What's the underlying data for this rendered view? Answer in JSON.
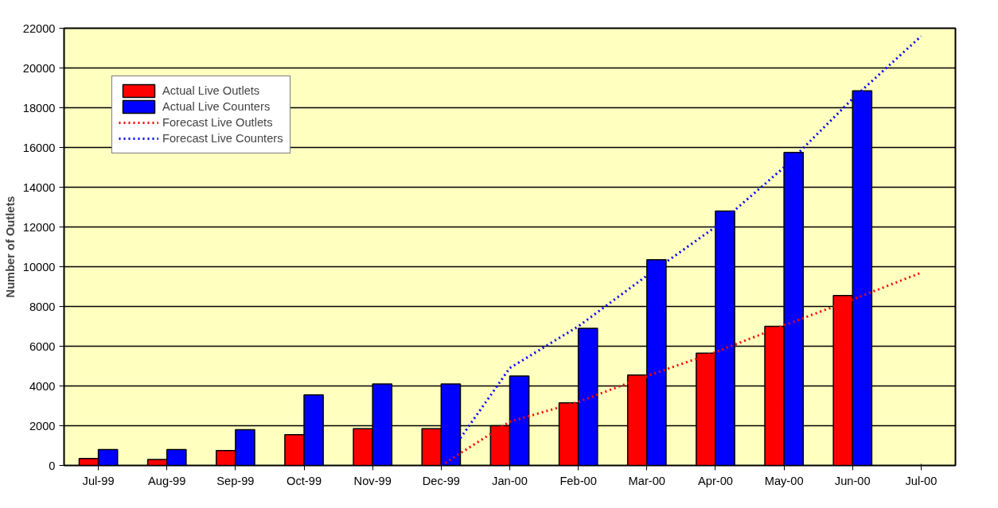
{
  "chart_data": {
    "type": "bar",
    "ylabel": "Number of Outlets",
    "categories": [
      "Jul-99",
      "Aug-99",
      "Sep-99",
      "Oct-99",
      "Nov-99",
      "Dec-99",
      "Jan-00",
      "Feb-00",
      "Mar-00",
      "Apr-00",
      "May-00",
      "Jun-00",
      "Jul-00"
    ],
    "series": [
      {
        "name": "Actual Live Outlets",
        "color": "#ff0000",
        "values": [
          350,
          300,
          750,
          1550,
          1850,
          1850,
          2000,
          3150,
          4550,
          5650,
          7000,
          8550,
          null
        ]
      },
      {
        "name": "Actual Live Counters",
        "color": "#0000ff",
        "values": [
          800,
          800,
          1800,
          3550,
          4100,
          4100,
          4500,
          6900,
          10350,
          12800,
          15750,
          18850,
          null
        ]
      },
      {
        "name": "Forecast Live Outlets",
        "color": "#ff0000",
        "type": "line",
        "line_style": "dotted",
        "values": [
          null,
          null,
          null,
          null,
          null,
          0,
          2200,
          3200,
          4500,
          5700,
          7050,
          8350,
          9700
        ]
      },
      {
        "name": "Forecast Live Counters",
        "color": "#0000ff",
        "type": "line",
        "line_style": "dotted",
        "values": [
          null,
          null,
          null,
          null,
          null,
          0,
          4900,
          7000,
          9550,
          12000,
          15000,
          18450,
          21600
        ]
      }
    ],
    "ylim": [
      0,
      22000
    ],
    "yticks": [
      0,
      2000,
      4000,
      6000,
      8000,
      10000,
      12000,
      14000,
      16000,
      18000,
      20000,
      22000
    ],
    "grid": "y",
    "legend": "top left"
  }
}
